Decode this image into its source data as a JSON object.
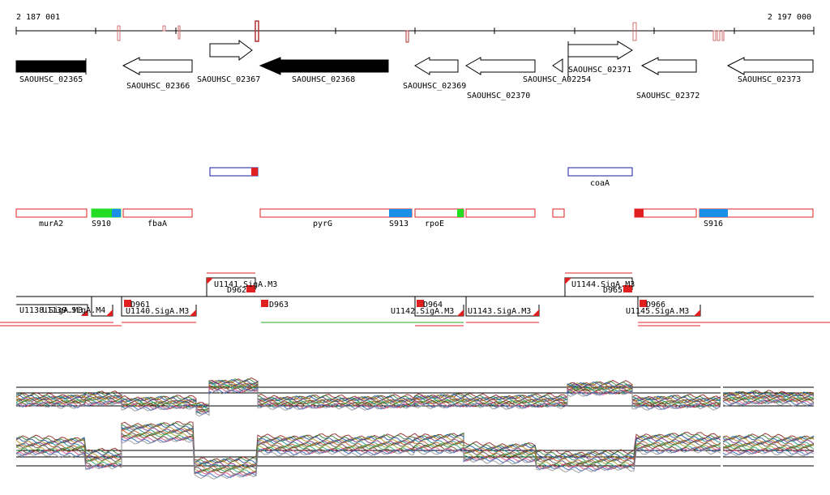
{
  "ruler": {
    "start_label": "2 187 001",
    "end_label": "2 197 000"
  },
  "genes": [
    {
      "label": "SAOUHSC_02365",
      "strand": "+",
      "color": "#000000",
      "filled": true
    },
    {
      "label": "SAOUHSC_02366",
      "strand": "-",
      "color": "#000000",
      "filled": false
    },
    {
      "label": "SAOUHSC_02367",
      "strand": "+",
      "color": "#000000",
      "filled": false
    },
    {
      "label": "SAOUHSC_02368",
      "strand": "-",
      "color": "#000000",
      "filled": true
    },
    {
      "label": "SAOUHSC_02369",
      "strand": "-",
      "color": "#000000",
      "filled": false
    },
    {
      "label": "SAOUHSC_02370",
      "strand": "-",
      "color": "#000000",
      "filled": false
    },
    {
      "label": "SAOUHSC_A02254",
      "strand": "-",
      "color": "#000000",
      "filled": false
    },
    {
      "label": "SAOUHSC_02371",
      "strand": "+",
      "color": "#000000",
      "filled": false
    },
    {
      "label": "SAOUHSC_02372",
      "strand": "-",
      "color": "#000000",
      "filled": false
    },
    {
      "label": "SAOUHSC_02373",
      "strand": "-",
      "color": "#000000",
      "filled": false
    }
  ],
  "upper_features": [
    {
      "label": "",
      "color": "#1a1aa0"
    },
    {
      "label": "coaA",
      "color": "#1a1aa0"
    }
  ],
  "operons": [
    {
      "label": "murA2"
    },
    {
      "label": "S910"
    },
    {
      "label": "fbaA"
    },
    {
      "label": "pyrG"
    },
    {
      "label": "S913"
    },
    {
      "label": "rpoE"
    },
    {
      "label": "S916"
    }
  ],
  "promoters": [
    {
      "label": "U1141.SigA.M3"
    },
    {
      "label": "D962"
    },
    {
      "label": "U1144.SigA.M3"
    },
    {
      "label": "D965"
    },
    {
      "label": "U1138.SigA.M3"
    },
    {
      "label": "U1139.SigA.M4"
    },
    {
      "label": "D961"
    },
    {
      "label": "U1140.SigA.M3"
    },
    {
      "label": "D963"
    },
    {
      "label": "D964"
    },
    {
      "label": "U1142.SigA.M3"
    },
    {
      "label": "U1143.SigA.M3"
    },
    {
      "label": "D966"
    },
    {
      "label": "U1145.SigA.M3"
    }
  ],
  "colors": {
    "red": "#e02020",
    "green": "#22dd22",
    "blue": "#1a8fe8",
    "navy": "#1a1aa0"
  }
}
